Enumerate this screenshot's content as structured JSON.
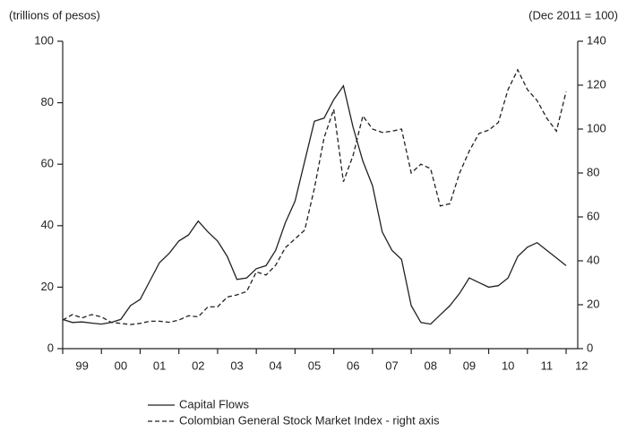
{
  "chart_data": {
    "type": "line",
    "y_label": "(trillions of pesos)",
    "y2_label": "(Dec 2011 = 100)",
    "x": [
      1999,
      1999.25,
      1999.5,
      1999.75,
      2000,
      2000.25,
      2000.5,
      2000.75,
      2001,
      2001.25,
      2001.5,
      2001.75,
      2002,
      2002.25,
      2002.5,
      2002.75,
      2003,
      2003.25,
      2003.5,
      2003.75,
      2004,
      2004.25,
      2004.5,
      2004.75,
      2005,
      2005.25,
      2005.5,
      2005.75,
      2006,
      2006.25,
      2006.5,
      2006.75,
      2007,
      2007.25,
      2007.5,
      2007.75,
      2008,
      2008.25,
      2008.5,
      2008.75,
      2009,
      2009.25,
      2009.5,
      2009.75,
      2010,
      2010.25,
      2010.5,
      2010.75,
      2011,
      2011.25,
      2011.5,
      2011.75,
      2012
    ],
    "series": [
      {
        "name": "Capital Flows",
        "color": "#222222",
        "dash": "solid",
        "values": [
          9.5,
          8.5,
          8.7,
          8.3,
          8,
          8.5,
          9.5,
          14,
          16,
          22,
          28,
          31,
          35,
          37,
          41.5,
          38,
          35,
          30,
          22.5,
          23,
          26,
          27,
          32,
          41,
          48,
          61,
          74,
          75,
          81,
          85.5,
          72,
          61,
          53,
          38,
          32,
          29,
          14,
          8.5,
          8,
          11,
          14,
          18,
          23,
          21.5,
          20,
          20.5,
          23,
          30,
          33,
          34.5,
          32,
          29.5,
          27
        ]
      },
      {
        "name": "Colombian General Stock Market Index - right axis",
        "color": "#222222",
        "dash": "dashed",
        "axis": "y2",
        "values": [
          13,
          15.5,
          14,
          15.5,
          14.5,
          12,
          11.5,
          11,
          11.5,
          12.5,
          12.5,
          12,
          13,
          15,
          14.5,
          19,
          19,
          23.5,
          24.5,
          26,
          35,
          33.5,
          38,
          46,
          50,
          54,
          73,
          96,
          109,
          76,
          88,
          106,
          100,
          98.5,
          99,
          100,
          80,
          84,
          82,
          65,
          66,
          80,
          90,
          98,
          99.5,
          103,
          118,
          127,
          118,
          113,
          105,
          99,
          117
        ]
      }
    ],
    "xlim": [
      1999,
      2012.3
    ],
    "xticks": [
      {
        "value": 1999.5,
        "label": "99"
      },
      {
        "value": 2000.5,
        "label": "00"
      },
      {
        "value": 2001.5,
        "label": "01"
      },
      {
        "value": 2002.5,
        "label": "02"
      },
      {
        "value": 2003.5,
        "label": "03"
      },
      {
        "value": 2004.5,
        "label": "04"
      },
      {
        "value": 2005.5,
        "label": "05"
      },
      {
        "value": 2006.5,
        "label": "06"
      },
      {
        "value": 2007.5,
        "label": "07"
      },
      {
        "value": 2008.5,
        "label": "08"
      },
      {
        "value": 2009.5,
        "label": "09"
      },
      {
        "value": 2010.5,
        "label": "10"
      },
      {
        "value": 2011.5,
        "label": "11"
      },
      {
        "value": 2012.4,
        "label": "12"
      }
    ],
    "ylim": [
      0,
      100
    ],
    "yticks": [
      0,
      20,
      40,
      60,
      80,
      100
    ],
    "y2lim": [
      0,
      140
    ],
    "y2ticks": [
      0,
      20,
      40,
      60,
      80,
      100,
      120,
      140
    ],
    "legend": "bottom"
  }
}
